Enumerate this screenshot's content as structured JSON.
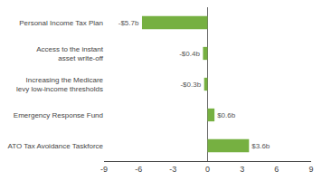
{
  "chart_data": {
    "type": "bar",
    "orientation": "horizontal",
    "categories": [
      "ATO Tax Avoidance Taskforce",
      "Emergency Response Fund",
      "Increasing the Medicare\nlevy low-income thresholds",
      "Access to the instant\nasset write-off",
      "Personal Income Tax Plan"
    ],
    "values": [
      3.6,
      0.6,
      -0.3,
      -0.4,
      -5.7
    ],
    "value_labels": [
      "$3.6b",
      "$0.6b",
      "-$0.3b",
      "-$0.4b",
      "-$5.7b"
    ],
    "data_labels": true,
    "color": "#76b041",
    "xlim": [
      -9,
      9
    ],
    "xticks": [
      -9,
      -6,
      -3,
      0,
      3,
      6,
      9
    ],
    "grid": false
  }
}
